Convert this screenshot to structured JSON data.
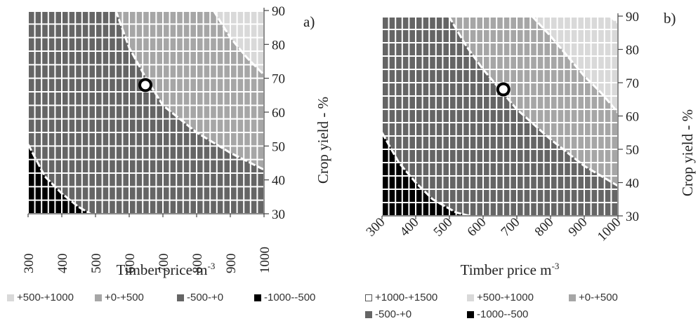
{
  "chart_data": [
    {
      "type": "heatmap",
      "panel_label": "a)",
      "xlabel": "Timber price m",
      "xlabel_sup": "-3",
      "ylabel": "Crop yield - %",
      "x_ticks": [
        300,
        400,
        500,
        600,
        700,
        800,
        900,
        1000
      ],
      "y_ticks": [
        30,
        40,
        50,
        60,
        70,
        80,
        90
      ],
      "xlim": [
        300,
        1000
      ],
      "ylim": [
        30,
        90
      ],
      "x_tick_rotation": -90,
      "grid": true,
      "marker": {
        "x": 648,
        "y": 68
      },
      "boundaries": [
        {
          "from": "-1000--500",
          "to": "-500-+0",
          "points": [
            [
              300,
              50.5
            ],
            [
              350,
              41
            ],
            [
              400,
              36
            ],
            [
              450,
              32
            ],
            [
              485,
              30
            ]
          ]
        },
        {
          "from": "-500-+0",
          "to": "+0-+500",
          "points": [
            [
              560,
              90
            ],
            [
              600,
              79
            ],
            [
              650,
              70
            ],
            [
              700,
              62
            ],
            [
              800,
              54
            ],
            [
              900,
              48
            ],
            [
              1000,
              43
            ]
          ]
        },
        {
          "from": "+0-+500",
          "to": "+500-+1000",
          "points": [
            [
              850,
              90
            ],
            [
              900,
              82
            ],
            [
              950,
              76
            ],
            [
              1000,
              71
            ]
          ]
        }
      ],
      "legend": [
        {
          "label": "+500-+1000",
          "color": "#d9d9d9"
        },
        {
          "label": "+0-+500",
          "color": "#a6a6a6"
        },
        {
          "label": "-500-+0",
          "color": "#656565"
        },
        {
          "label": "-1000--500",
          "color": "#000000"
        }
      ]
    },
    {
      "type": "heatmap",
      "panel_label": "b)",
      "xlabel": "Timber price m",
      "xlabel_sup": "-3",
      "ylabel": "Crop yield - %",
      "x_ticks": [
        300,
        400,
        500,
        600,
        700,
        800,
        900,
        1000
      ],
      "y_ticks": [
        30,
        40,
        50,
        60,
        70,
        80,
        90
      ],
      "xlim": [
        300,
        1000
      ],
      "ylim": [
        30,
        90
      ],
      "x_tick_rotation": -45,
      "grid": true,
      "marker": {
        "x": 660,
        "y": 68
      },
      "boundaries": [
        {
          "from": "-1000--500",
          "to": "-500-+0",
          "points": [
            [
              300,
              55
            ],
            [
              350,
              46
            ],
            [
              400,
              40
            ],
            [
              450,
              35
            ],
            [
              520,
              31
            ],
            [
              560,
              30
            ]
          ]
        },
        {
          "from": "-500-+0",
          "to": "+0-+500",
          "points": [
            [
              498,
              90
            ],
            [
              550,
              81
            ],
            [
              600,
              74
            ],
            [
              650,
              68
            ],
            [
              700,
              62
            ],
            [
              800,
              53
            ],
            [
              900,
              45
            ],
            [
              1000,
              39
            ]
          ]
        },
        {
          "from": "+0-+500",
          "to": "+500-+1000",
          "points": [
            [
              745,
              90
            ],
            [
              800,
              84
            ],
            [
              850,
              78
            ],
            [
              900,
              72
            ],
            [
              950,
              67
            ],
            [
              1000,
              61
            ]
          ]
        },
        {
          "from": "+500-+1000",
          "to": "+1000-+1500",
          "points": [
            [
              975,
              90
            ],
            [
              1000,
              88
            ]
          ]
        }
      ],
      "legend": [
        {
          "label": "+1000-+1500",
          "color": "#ffffff"
        },
        {
          "label": "+500-+1000",
          "color": "#d9d9d9"
        },
        {
          "label": "+0-+500",
          "color": "#a6a6a6"
        },
        {
          "label": "-500-+0",
          "color": "#656565"
        },
        {
          "label": "-1000--500",
          "color": "#000000"
        }
      ]
    }
  ]
}
